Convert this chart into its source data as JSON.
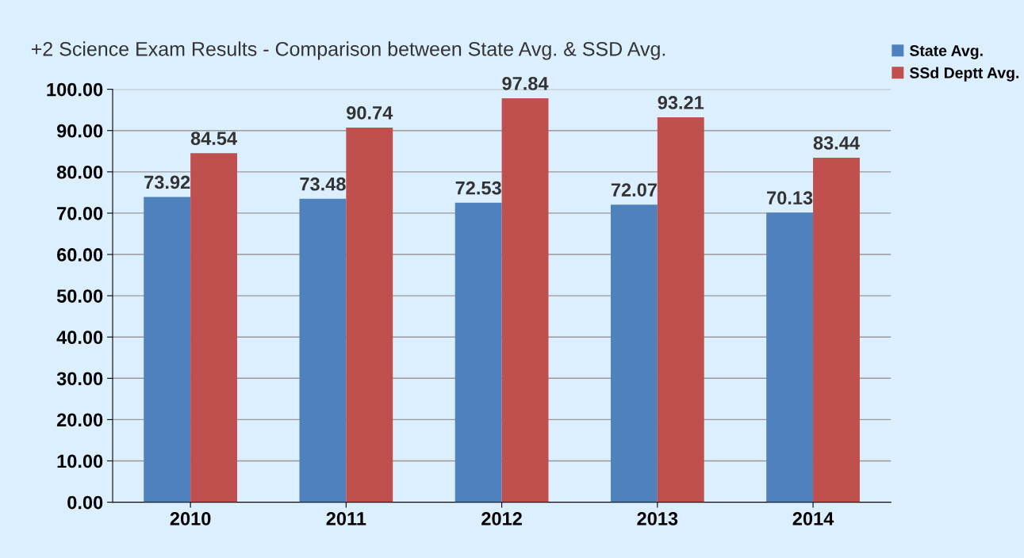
{
  "chart_data": {
    "type": "bar",
    "title": "+2 Science Exam Results - Comparison between State Avg. & SSD Avg.",
    "categories": [
      "2010",
      "2011",
      "2012",
      "2013",
      "2014"
    ],
    "series": [
      {
        "name": "State Avg.",
        "color": "#4f81bd",
        "values": [
          73.92,
          73.48,
          72.53,
          72.07,
          70.13
        ]
      },
      {
        "name": "SSd Deptt Avg.",
        "color": "#c0504d",
        "values": [
          84.54,
          90.74,
          97.84,
          93.21,
          83.44
        ]
      }
    ],
    "ylim": [
      0,
      100
    ],
    "yticks": [
      {
        "value": 0,
        "label": "0.00"
      },
      {
        "value": 10,
        "label": "10.00"
      },
      {
        "value": 20,
        "label": "20.00"
      },
      {
        "value": 30,
        "label": "30.00"
      },
      {
        "value": 40,
        "label": "40.00"
      },
      {
        "value": 50,
        "label": "50.00"
      },
      {
        "value": 60,
        "label": "60.00"
      },
      {
        "value": 70,
        "label": "70.00"
      },
      {
        "value": 80,
        "label": "80.00"
      },
      {
        "value": 90,
        "label": "90.00"
      },
      {
        "value": 100,
        "label": "100.00"
      }
    ],
    "grid": "y",
    "legend": "top right",
    "data_labels": true
  }
}
